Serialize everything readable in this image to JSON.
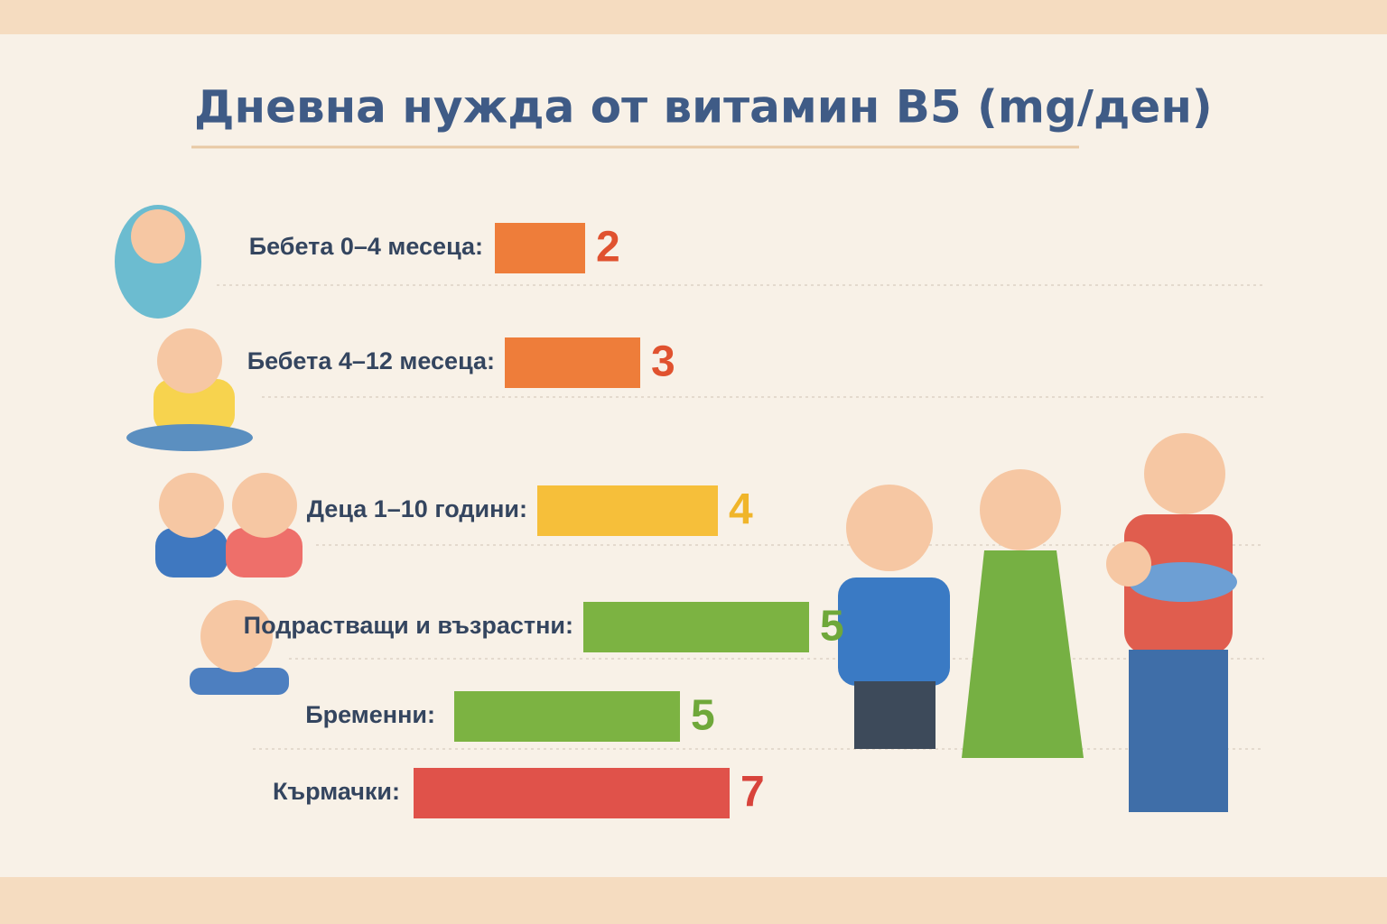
{
  "chart_data": {
    "type": "bar",
    "orientation": "horizontal",
    "title": "Дневна нужда от витамин B5 (mg/ден)",
    "categories": [
      "Бебета 0–4 месеца:",
      "Бебета 4–12 месеца:",
      "Деца 1–10 години:",
      "Подрастващи и възрастни:",
      "Бременни:",
      "Кърмачки:"
    ],
    "values": [
      2,
      3,
      4,
      5,
      5,
      7
    ],
    "colors": [
      "#ee7d3a",
      "#ee7d3a",
      "#f6bf3a",
      "#7cb342",
      "#7cb342",
      "#e0524a"
    ],
    "value_label_colors": [
      "#e0522f",
      "#e0522f",
      "#f0b52a",
      "#6fa83a",
      "#6fa83a",
      "#d8433b"
    ]
  }
}
